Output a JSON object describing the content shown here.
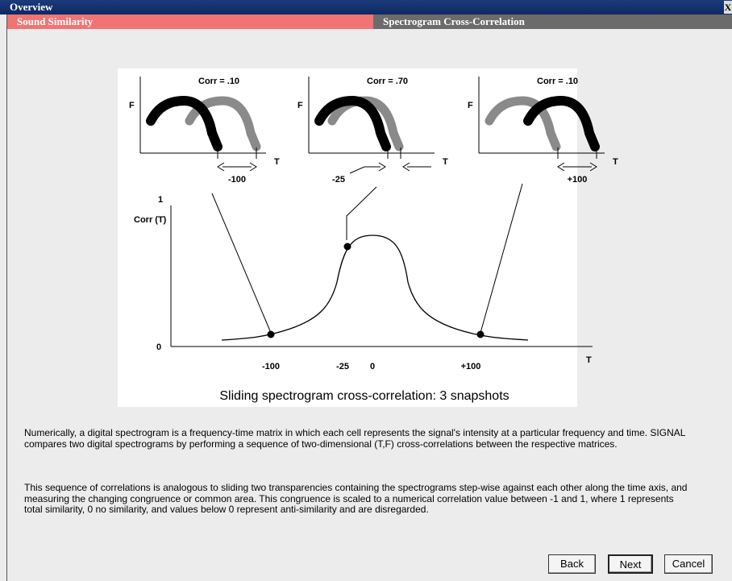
{
  "window": {
    "title": "Overview",
    "close": "X"
  },
  "tabs": [
    "Sound Similarity",
    "Spectrogram Cross-Correlation"
  ],
  "figure": {
    "axis_f": "F",
    "axis_t": "T",
    "panels": [
      {
        "corr": "Corr = .10",
        "shift": "-100"
      },
      {
        "corr": "Corr = .70",
        "shift": "-25"
      },
      {
        "corr": "Corr = .10",
        "shift": "+100"
      }
    ],
    "graph": {
      "ymax": "1",
      "ylabel": "Corr (T)",
      "ymin": "0",
      "xlabels": [
        "-100",
        "-25",
        "0",
        "+100"
      ],
      "xlabel": "T"
    },
    "caption": "Sliding spectrogram cross-correlation:  3 snapshots"
  },
  "paragraphs": [
    "Numerically, a digital spectrogram is a frequency-time matrix in which each cell represents the signal's intensity at a particular frequency and time.  SIGNAL compares two digital spectrograms by performing a sequence of two-dimensional (T,F) cross-correlations between the respective matrices.",
    "This sequence of correlations is analogous to sliding two transparencies containing the spectrograms step-wise against each other along the time axis, and measuring the changing congruence or common area.  This congruence is scaled to a numerical correlation value between -1 and 1, where 1 represents total similarity, 0 no similarity, and values below 0 represent anti-similarity and are disregarded."
  ],
  "buttons": [
    "Back",
    "Next",
    "Cancel"
  ]
}
